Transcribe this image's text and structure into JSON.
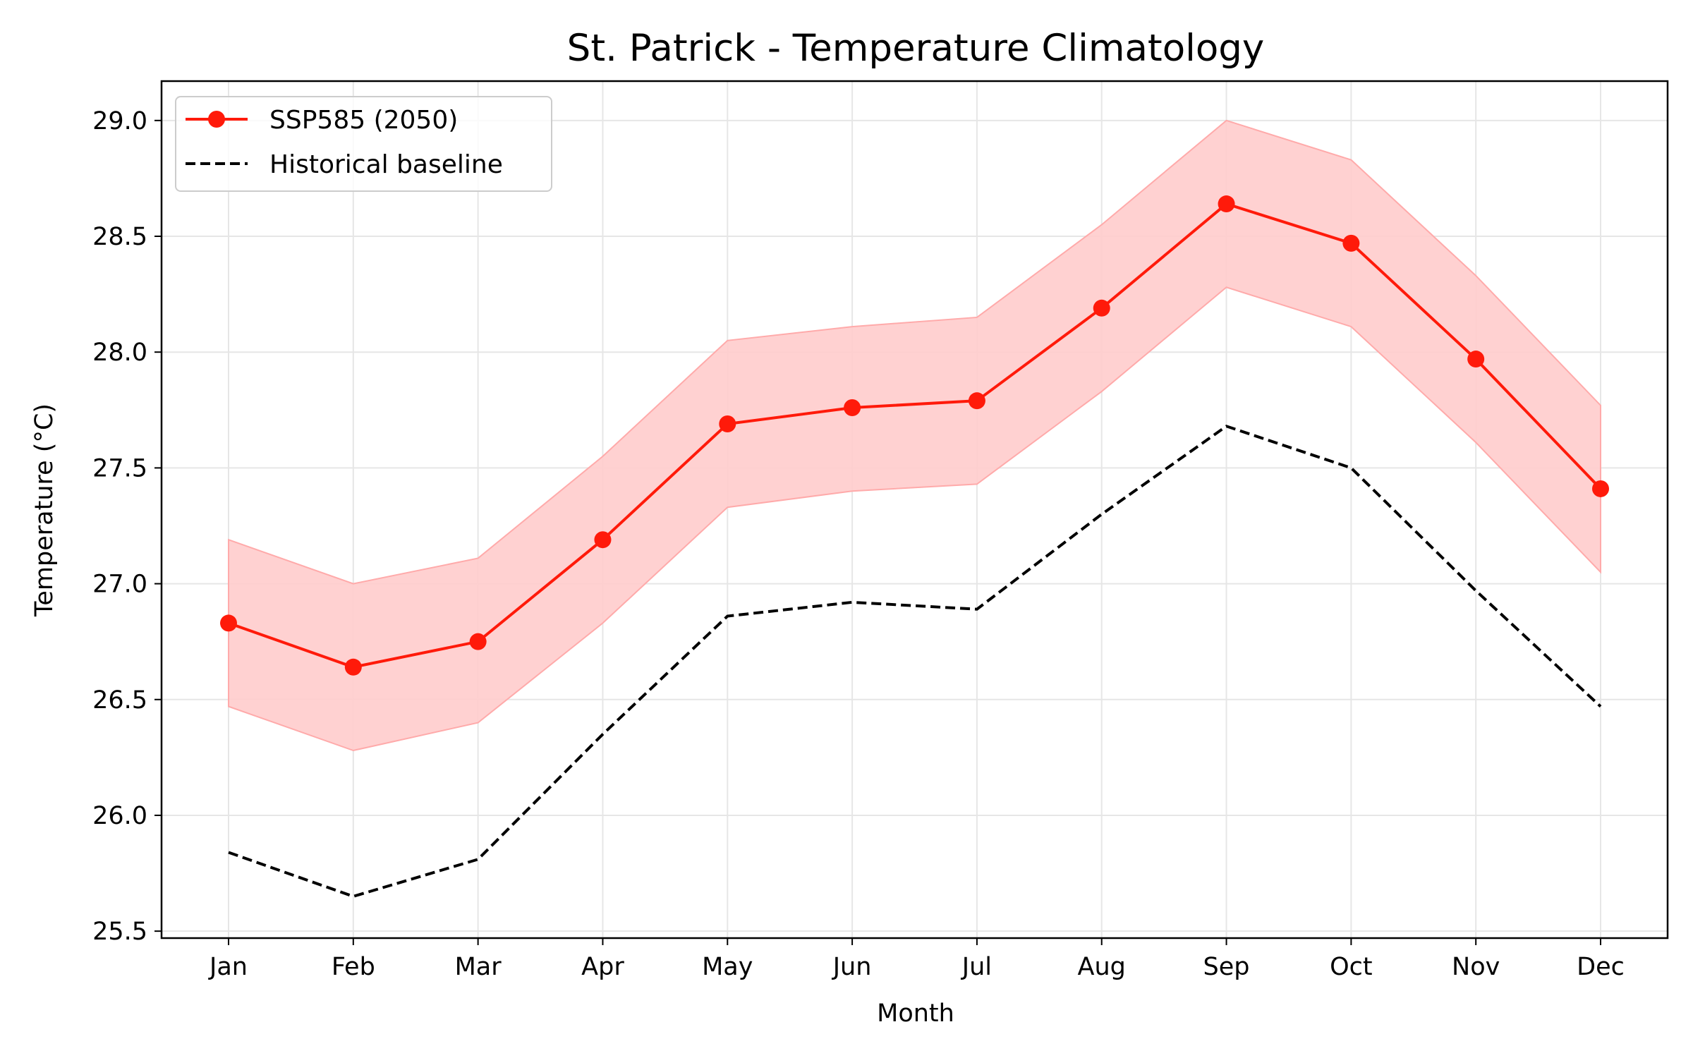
{
  "chart_data": {
    "type": "line",
    "title": "St. Patrick - Temperature Climatology",
    "xlabel": "Month",
    "ylabel": "Temperature (°C)",
    "categories": [
      "Jan",
      "Feb",
      "Mar",
      "Apr",
      "May",
      "Jun",
      "Jul",
      "Aug",
      "Sep",
      "Oct",
      "Nov",
      "Dec"
    ],
    "yticks": [
      "25.5",
      "26.0",
      "26.5",
      "27.0",
      "27.5",
      "28.0",
      "28.5",
      "29.0"
    ],
    "ylim": [
      25.47,
      29.17
    ],
    "grid": true,
    "legend_position": "top-left",
    "series": [
      {
        "name": "SSP585 (2050)",
        "style": "solid-markers",
        "color": "#ff1a0a",
        "values": [
          26.83,
          26.64,
          26.75,
          27.19,
          27.69,
          27.76,
          27.79,
          28.19,
          28.64,
          28.47,
          27.97,
          27.41
        ],
        "band_upper": [
          27.19,
          27.0,
          27.11,
          27.55,
          28.05,
          28.11,
          28.15,
          28.55,
          29.0,
          28.83,
          28.33,
          27.77
        ],
        "band_lower": [
          26.47,
          26.28,
          26.4,
          26.83,
          27.33,
          27.4,
          27.43,
          27.83,
          28.28,
          28.11,
          27.61,
          27.05
        ],
        "band_color": "#ffcccc"
      },
      {
        "name": "Historical baseline",
        "style": "dashed",
        "color": "#000000",
        "values": [
          25.84,
          25.65,
          25.81,
          26.35,
          26.86,
          26.92,
          26.89,
          27.3,
          27.68,
          27.5,
          26.97,
          26.47
        ]
      }
    ]
  }
}
